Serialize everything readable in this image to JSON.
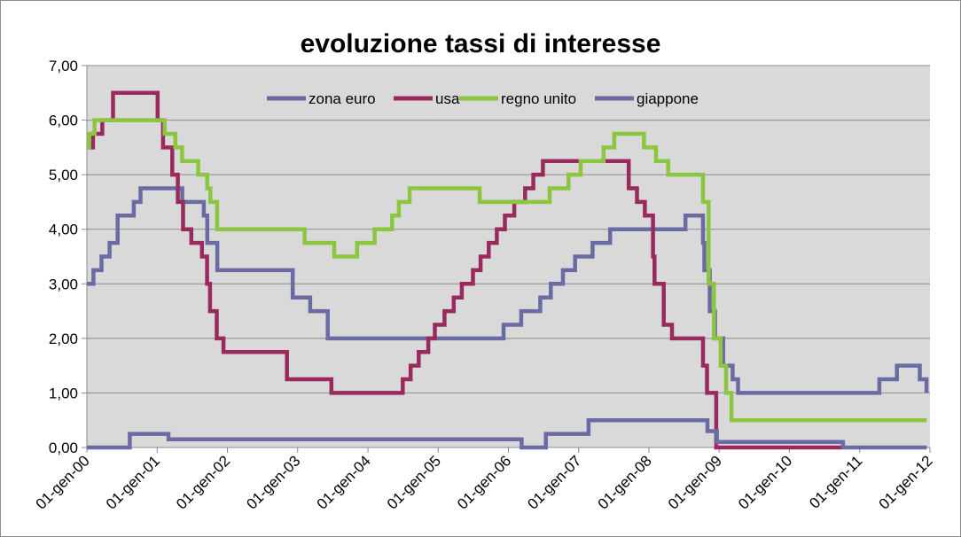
{
  "chart_data": {
    "type": "line",
    "title": "evoluzione tassi di interesse",
    "xlabel": "",
    "ylabel": "",
    "ylim": [
      0,
      7
    ],
    "yticks": [
      "0,00",
      "1,00",
      "2,00",
      "3,00",
      "4,00",
      "5,00",
      "6,00",
      "7,00"
    ],
    "xlim": [
      "2000-01-01",
      "2012-01-01"
    ],
    "xticks": [
      "01-gen-00",
      "01-gen-01",
      "01-gen-02",
      "01-gen-03",
      "01-gen-04",
      "01-gen-05",
      "01-gen-06",
      "01-gen-07",
      "01-gen-08",
      "01-gen-09",
      "01-gen-10",
      "01-gen-11",
      "01-gen-12"
    ],
    "grid": true,
    "legend_position": "top",
    "step": true,
    "series": [
      {
        "name": "zona euro",
        "color": "#6b6ba3",
        "points": [
          [
            "2000-01-01",
            3.0
          ],
          [
            "2000-02-04",
            3.25
          ],
          [
            "2000-03-17",
            3.5
          ],
          [
            "2000-04-28",
            3.75
          ],
          [
            "2000-06-09",
            4.25
          ],
          [
            "2000-09-01",
            4.5
          ],
          [
            "2000-10-06",
            4.75
          ],
          [
            "2001-05-11",
            4.5
          ],
          [
            "2001-08-31",
            4.25
          ],
          [
            "2001-09-18",
            3.75
          ],
          [
            "2001-11-09",
            3.25
          ],
          [
            "2002-12-06",
            2.75
          ],
          [
            "2003-03-07",
            2.5
          ],
          [
            "2003-06-06",
            2.0
          ],
          [
            "2005-12-06",
            2.25
          ],
          [
            "2006-03-08",
            2.5
          ],
          [
            "2006-06-15",
            2.75
          ],
          [
            "2006-08-09",
            3.0
          ],
          [
            "2006-10-11",
            3.25
          ],
          [
            "2006-12-13",
            3.5
          ],
          [
            "2007-03-14",
            3.75
          ],
          [
            "2007-06-13",
            4.0
          ],
          [
            "2008-07-09",
            4.25
          ],
          [
            "2008-10-08",
            3.75
          ],
          [
            "2008-10-15",
            3.25
          ],
          [
            "2008-11-12",
            2.5
          ],
          [
            "2008-12-10",
            2.0
          ],
          [
            "2009-01-21",
            1.5
          ],
          [
            "2009-03-11",
            1.25
          ],
          [
            "2009-04-08",
            1.0
          ],
          [
            "2011-04-13",
            1.25
          ],
          [
            "2011-07-13",
            1.5
          ],
          [
            "2011-11-09",
            1.25
          ],
          [
            "2011-12-14",
            1.0
          ]
        ]
      },
      {
        "name": "usa",
        "color": "#9a2a5e",
        "points": [
          [
            "2000-01-01",
            5.5
          ],
          [
            "2000-02-02",
            5.75
          ],
          [
            "2000-03-21",
            6.0
          ],
          [
            "2000-05-16",
            6.5
          ],
          [
            "2001-01-03",
            6.0
          ],
          [
            "2001-01-31",
            5.5
          ],
          [
            "2001-03-20",
            5.0
          ],
          [
            "2001-04-18",
            4.5
          ],
          [
            "2001-05-15",
            4.0
          ],
          [
            "2001-06-27",
            3.75
          ],
          [
            "2001-08-21",
            3.5
          ],
          [
            "2001-09-17",
            3.0
          ],
          [
            "2001-10-02",
            2.5
          ],
          [
            "2001-11-06",
            2.0
          ],
          [
            "2001-12-11",
            1.75
          ],
          [
            "2002-11-06",
            1.25
          ],
          [
            "2003-06-25",
            1.0
          ],
          [
            "2004-06-30",
            1.25
          ],
          [
            "2004-08-10",
            1.5
          ],
          [
            "2004-09-21",
            1.75
          ],
          [
            "2004-11-10",
            2.0
          ],
          [
            "2004-12-14",
            2.25
          ],
          [
            "2005-02-02",
            2.5
          ],
          [
            "2005-03-22",
            2.75
          ],
          [
            "2005-05-03",
            3.0
          ],
          [
            "2005-06-30",
            3.25
          ],
          [
            "2005-08-09",
            3.5
          ],
          [
            "2005-09-20",
            3.75
          ],
          [
            "2005-11-01",
            4.0
          ],
          [
            "2005-12-13",
            4.25
          ],
          [
            "2006-01-31",
            4.5
          ],
          [
            "2006-03-28",
            4.75
          ],
          [
            "2006-05-10",
            5.0
          ],
          [
            "2006-06-29",
            5.25
          ],
          [
            "2007-09-18",
            4.75
          ],
          [
            "2007-10-31",
            4.5
          ],
          [
            "2007-12-11",
            4.25
          ],
          [
            "2008-01-22",
            3.5
          ],
          [
            "2008-01-30",
            3.0
          ],
          [
            "2008-03-18",
            2.25
          ],
          [
            "2008-04-30",
            2.0
          ],
          [
            "2008-10-08",
            1.5
          ],
          [
            "2008-10-29",
            1.0
          ],
          [
            "2008-12-16",
            0.0
          ],
          [
            "2010-09-30",
            0.0
          ]
        ]
      },
      {
        "name": "regno unito",
        "color": "#8cc63f",
        "points": [
          [
            "2000-01-01",
            5.5
          ],
          [
            "2000-01-13",
            5.75
          ],
          [
            "2000-02-10",
            6.0
          ],
          [
            "2001-02-08",
            5.75
          ],
          [
            "2001-04-05",
            5.5
          ],
          [
            "2001-05-10",
            5.25
          ],
          [
            "2001-08-02",
            5.0
          ],
          [
            "2001-09-18",
            4.75
          ],
          [
            "2001-10-04",
            4.5
          ],
          [
            "2001-11-08",
            4.0
          ],
          [
            "2003-02-06",
            3.75
          ],
          [
            "2003-07-10",
            3.5
          ],
          [
            "2003-11-06",
            3.75
          ],
          [
            "2004-02-05",
            4.0
          ],
          [
            "2004-05-06",
            4.25
          ],
          [
            "2004-06-10",
            4.5
          ],
          [
            "2004-08-05",
            4.75
          ],
          [
            "2005-08-04",
            4.5
          ],
          [
            "2006-08-03",
            4.75
          ],
          [
            "2006-11-09",
            5.0
          ],
          [
            "2007-01-11",
            5.25
          ],
          [
            "2007-05-10",
            5.5
          ],
          [
            "2007-07-05",
            5.75
          ],
          [
            "2007-12-06",
            5.5
          ],
          [
            "2008-02-07",
            5.25
          ],
          [
            "2008-04-10",
            5.0
          ],
          [
            "2008-10-08",
            4.5
          ],
          [
            "2008-11-06",
            3.0
          ],
          [
            "2008-12-04",
            2.0
          ],
          [
            "2009-01-08",
            1.5
          ],
          [
            "2009-02-05",
            1.0
          ],
          [
            "2009-03-05",
            0.5
          ],
          [
            "2011-12-15",
            0.5
          ]
        ]
      },
      {
        "name": "giappone",
        "color": "#6b6ba3",
        "points": [
          [
            "2000-01-01",
            0.0
          ],
          [
            "2000-08-11",
            0.25
          ],
          [
            "2001-02-28",
            0.15
          ],
          [
            "2006-03-09",
            0.15
          ],
          [
            "2006-03-10",
            0.0
          ],
          [
            "2006-07-14",
            0.25
          ],
          [
            "2007-02-21",
            0.5
          ],
          [
            "2008-10-31",
            0.3
          ],
          [
            "2008-12-19",
            0.1
          ],
          [
            "2010-10-05",
            0.1
          ],
          [
            "2010-10-06",
            0.0
          ],
          [
            "2011-12-15",
            0.0
          ]
        ]
      }
    ]
  }
}
